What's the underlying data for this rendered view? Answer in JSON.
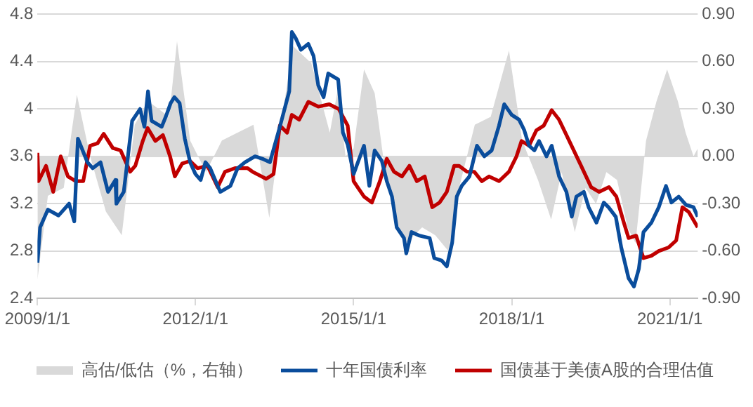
{
  "chart_data": {
    "type": "line",
    "grid": "y",
    "legend": "bottom",
    "marker": "none",
    "line_style": "solid",
    "xlim": [
      "2009-01-01",
      "2021-07-13"
    ],
    "xticks": [
      {
        "value": "2009-01-01",
        "label": "2009/1/1"
      },
      {
        "value": "2012-01-01",
        "label": "2012/1/1"
      },
      {
        "value": "2015-01-01",
        "label": "2015/1/1"
      },
      {
        "value": "2018-01-01",
        "label": "2018/1/1"
      },
      {
        "value": "2021-01-01",
        "label": "2021/1/1"
      }
    ],
    "ylim": [
      2.4,
      4.8
    ],
    "yticks": [
      2.4,
      2.8,
      3.2,
      3.6,
      4,
      4.4,
      4.8
    ],
    "y2lim": [
      -0.9,
      0.9
    ],
    "y2ticks": [
      {
        "value": -0.9,
        "label": "-0.90"
      },
      {
        "value": -0.6,
        "label": "-0.60"
      },
      {
        "value": -0.3,
        "label": "-0.30"
      },
      {
        "value": 0,
        "label": "0.00"
      },
      {
        "value": 0.3,
        "label": "0.30"
      },
      {
        "value": 0.6,
        "label": "0.60"
      },
      {
        "value": 0.9,
        "label": "0.90"
      }
    ],
    "series": [
      {
        "name": "高估/低估（%，右轴）",
        "type": "area",
        "axis": "y2",
        "color": "#d9d9d9",
        "x": [
          "2009-01-01",
          "2009-03-14",
          "2009-07-02",
          "2009-10-01",
          "2010-01-01",
          "2010-04-20",
          "2010-08-08",
          "2010-11-06",
          "2011-02-06",
          "2011-07-02",
          "2011-08-26",
          "2011-11-25",
          "2012-03-14",
          "2012-07-02",
          "2012-10-19",
          "2013-02-06",
          "2013-05-27",
          "2013-08-08",
          "2013-11-06",
          "2014-03-14",
          "2014-07-20",
          "2014-09-13",
          "2014-11-06",
          "2015-01-01",
          "2015-03-14",
          "2015-05-27",
          "2015-08-08",
          "2015-10-19",
          "2016-01-01",
          "2016-04-20",
          "2016-07-20",
          "2016-10-19",
          "2017-01-01",
          "2017-04-20",
          "2017-08-08",
          "2017-11-06",
          "2017-12-13",
          "2018-03-14",
          "2018-07-02",
          "2018-10-01",
          "2018-12-13",
          "2019-03-14",
          "2019-05-27",
          "2019-08-08",
          "2019-10-19",
          "2020-01-01",
          "2020-03-14",
          "2020-05-08",
          "2020-07-20",
          "2020-10-01",
          "2020-12-13",
          "2021-02-25",
          "2021-04-20",
          "2021-06-14",
          "2021-07-13"
        ],
        "values": [
          -0.78,
          -0.25,
          -0.2,
          0.39,
          0,
          -0.35,
          -0.5,
          0.2,
          0.35,
          0.25,
          0.73,
          0.1,
          -0.1,
          0.1,
          0.15,
          0.2,
          -0.39,
          0.15,
          0.7,
          0.59,
          0.15,
          0.42,
          0,
          0.05,
          0.55,
          0.4,
          -0.1,
          -0.4,
          -0.55,
          -0.45,
          -0.5,
          -0.6,
          -0.2,
          0.2,
          0.25,
          0.55,
          0.67,
          0.1,
          -0.15,
          -0.4,
          -0.1,
          -0.48,
          -0.2,
          -0.3,
          -0.1,
          -0.15,
          -0.45,
          -0.55,
          0.1,
          0.35,
          0.55,
          0.35,
          0.15,
          0,
          0.05
        ]
      },
      {
        "name": "十年国债利率",
        "color": "#0a4d9c",
        "x": [
          "2009-01-01",
          "2009-01-19",
          "2009-03-14",
          "2009-05-27",
          "2009-08-08",
          "2009-09-13",
          "2009-10-08",
          "2009-12-13",
          "2010-01-19",
          "2010-03-14",
          "2010-05-05",
          "2010-06-25",
          "2010-07-02",
          "2010-08-22",
          "2010-10-19",
          "2010-12-13",
          "2011-01-12",
          "2011-02-06",
          "2011-03-03",
          "2011-05-12",
          "2011-06-14",
          "2011-07-13",
          "2011-08-08",
          "2011-09-13",
          "2011-10-19",
          "2011-11-25",
          "2012-01-01",
          "2012-02-06",
          "2012-03-10",
          "2012-04-12",
          "2012-06-03",
          "2012-06-21",
          "2012-08-30",
          "2012-10-19",
          "2012-12-09",
          "2013-02-17",
          "2013-04-08",
          "2013-05-31",
          "2013-08-08",
          "2013-10-12",
          "2013-10-30",
          "2013-11-25",
          "2014-01-01",
          "2014-02-21",
          "2014-03-29",
          "2014-05-01",
          "2014-06-07",
          "2014-07-09",
          "2014-09-16",
          "2014-10-19",
          "2014-11-21",
          "2015-01-01",
          "2015-03-14",
          "2015-04-20",
          "2015-05-27",
          "2015-07-16",
          "2015-08-19",
          "2015-09-24",
          "2015-10-27",
          "2015-12-16",
          "2016-01-01",
          "2016-02-06",
          "2016-04-01",
          "2016-06-11",
          "2016-07-13",
          "2016-09-02",
          "2016-10-08",
          "2016-11-14",
          "2016-12-16",
          "2017-01-19",
          "2017-03-14",
          "2017-05-05",
          "2017-06-25",
          "2017-08-15",
          "2017-10-05",
          "2017-11-10",
          "2018-01-01",
          "2018-02-21",
          "2018-03-29",
          "2018-05-01",
          "2018-06-07",
          "2018-07-09",
          "2018-08-30",
          "2018-10-05",
          "2018-11-25",
          "2019-01-15",
          "2019-02-21",
          "2019-03-25",
          "2019-05-16",
          "2019-06-18",
          "2019-08-11",
          "2019-10-01",
          "2019-11-03",
          "2019-12-23",
          "2020-01-30",
          "2020-03-21",
          "2020-04-27",
          "2020-05-31",
          "2020-07-02",
          "2020-08-26",
          "2020-10-16",
          "2020-12-05",
          "2021-01-12",
          "2021-03-03",
          "2021-04-23",
          "2021-06-14",
          "2021-07-13"
        ],
        "values": [
          2.7,
          3,
          3.15,
          3.1,
          3.2,
          3.05,
          3.75,
          3.55,
          3.5,
          3.55,
          3.3,
          3.4,
          3.2,
          3.3,
          3.9,
          4,
          3.85,
          4.15,
          3.9,
          3.85,
          3.95,
          4.05,
          4.1,
          4.05,
          3.75,
          3.55,
          3.45,
          3.4,
          3.55,
          3.5,
          3.35,
          3.3,
          3.35,
          3.5,
          3.55,
          3.6,
          3.58,
          3.55,
          3.85,
          4.15,
          4.65,
          4.6,
          4.5,
          4.55,
          4.45,
          4.2,
          4.1,
          4.3,
          4.25,
          3.8,
          3.7,
          3.45,
          3.69,
          3.35,
          3.65,
          3.56,
          3.39,
          3.26,
          3,
          2.91,
          2.78,
          2.96,
          2.93,
          2.91,
          2.74,
          2.72,
          2.67,
          2.87,
          3.26,
          3.35,
          3.43,
          3.69,
          3.6,
          3.65,
          3.86,
          4.04,
          3.95,
          3.91,
          3.82,
          3.69,
          3.65,
          3.73,
          3.6,
          3.69,
          3.43,
          3.3,
          3.09,
          3.26,
          3.3,
          3.17,
          3.04,
          3.21,
          3.17,
          3.09,
          2.83,
          2.57,
          2.5,
          2.65,
          2.96,
          3.04,
          3.17,
          3.35,
          3.21,
          3.26,
          3.19,
          3.17,
          3.09
        ]
      },
      {
        "name": "国债基于美债A股的合理估值",
        "color": "#c00000",
        "x": [
          "2009-01-01",
          "2009-01-08",
          "2009-03-01",
          "2009-04-20",
          "2009-06-11",
          "2009-07-31",
          "2009-09-24",
          "2009-11-14",
          "2010-01-01",
          "2010-02-21",
          "2010-04-05",
          "2010-06-07",
          "2010-07-31",
          "2010-10-05",
          "2010-11-10",
          "2011-01-01",
          "2011-02-03",
          "2011-03-29",
          "2011-05-20",
          "2011-07-09",
          "2011-08-11",
          "2011-10-01",
          "2011-11-25",
          "2012-01-15",
          "2012-03-25",
          "2012-06-03",
          "2012-07-24",
          "2012-10-01",
          "2012-12-27",
          "2013-01-30",
          "2013-05-05",
          "2013-06-25",
          "2013-08-08",
          "2013-09-27",
          "2013-10-30",
          "2013-12-20",
          "2014-02-21",
          "2014-05-01",
          "2014-07-16",
          "2014-09-20",
          "2014-11-21",
          "2015-01-01",
          "2015-03-14",
          "2015-05-08",
          "2015-07-02",
          "2015-08-19",
          "2015-10-08",
          "2015-12-02",
          "2016-01-23",
          "2016-03-14",
          "2016-05-08",
          "2016-06-29",
          "2016-08-19",
          "2016-10-08",
          "2016-11-28",
          "2017-01-01",
          "2017-02-25",
          "2017-04-16",
          "2017-06-07",
          "2017-07-28",
          "2017-10-05",
          "2017-12-13",
          "2018-02-03",
          "2018-03-10",
          "2018-05-01",
          "2018-06-21",
          "2018-08-11",
          "2018-10-05",
          "2018-11-25",
          "2019-01-15",
          "2019-03-07",
          "2019-04-27",
          "2019-07-05",
          "2019-08-30",
          "2019-11-06",
          "2019-12-27",
          "2020-02-17",
          "2020-03-21",
          "2020-05-12",
          "2020-07-02",
          "2020-08-26",
          "2020-10-16",
          "2020-12-23",
          "2021-02-14",
          "2021-03-29",
          "2021-05-12",
          "2021-07-13"
        ],
        "values": [
          3.63,
          3.39,
          3.52,
          3.3,
          3.6,
          3.43,
          3.39,
          3.39,
          3.69,
          3.71,
          3.79,
          3.67,
          3.65,
          3.47,
          3.52,
          3.73,
          3.84,
          3.73,
          3.78,
          3.6,
          3.43,
          3.54,
          3.56,
          3.5,
          3.52,
          3.34,
          3.47,
          3.5,
          3.5,
          3.47,
          3.41,
          3.45,
          3.86,
          3.8,
          3.95,
          3.91,
          4.06,
          4.02,
          4.04,
          4,
          3.86,
          3.39,
          3.26,
          3.21,
          3.39,
          3.58,
          3.47,
          3.43,
          3.52,
          3.39,
          3.43,
          3.17,
          3.21,
          3.3,
          3.52,
          3.52,
          3.47,
          3.47,
          3.39,
          3.43,
          3.39,
          3.47,
          3.6,
          3.73,
          3.69,
          3.82,
          3.86,
          3.99,
          3.91,
          3.78,
          3.65,
          3.52,
          3.34,
          3.3,
          3.34,
          3.26,
          3.04,
          2.91,
          2.93,
          2.74,
          2.76,
          2.8,
          2.83,
          2.89,
          3.17,
          3.13,
          3
        ]
      }
    ]
  }
}
